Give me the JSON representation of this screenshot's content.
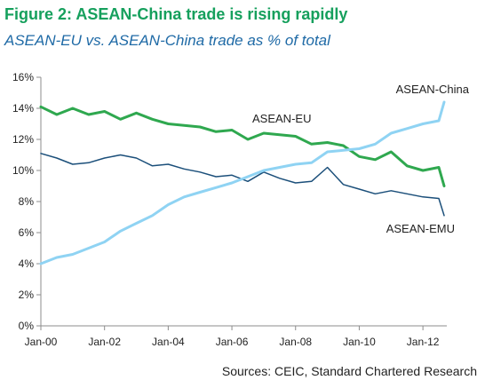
{
  "header": {
    "title": "Figure 2: ASEAN-China trade is rising rapidly",
    "subtitle": "ASEAN-EU vs. ASEAN-China trade as % of total"
  },
  "footer": {
    "source": "Sources: CEIC, Standard Chartered Research"
  },
  "colors": {
    "title": "#16a05d",
    "subtitle": "#1f6aa6",
    "axis": "#8c8c8c",
    "text": "#222222"
  },
  "chart_data": {
    "type": "line",
    "title": "Figure 2: ASEAN-China trade is rising rapidly",
    "subtitle": "ASEAN-EU vs. ASEAN-China trade as % of total",
    "xlabel": "",
    "ylabel": "",
    "x_ticks": [
      "Jan-00",
      "Jan-02",
      "Jan-04",
      "Jan-06",
      "Jan-08",
      "Jan-10",
      "Jan-12"
    ],
    "y_ticks": [
      "0%",
      "2%",
      "4%",
      "6%",
      "8%",
      "10%",
      "12%",
      "14%",
      "16%"
    ],
    "xlim": [
      "2000-01",
      "2012-09"
    ],
    "ylim": [
      0,
      16
    ],
    "grid": false,
    "legend": "inline labels",
    "series": [
      {
        "name": "ASEAN-EU",
        "color": "#2fa84f",
        "width": 3,
        "x": [
          "2000-01",
          "2000-07",
          "2001-01",
          "2001-07",
          "2002-01",
          "2002-07",
          "2003-01",
          "2003-07",
          "2004-01",
          "2004-07",
          "2005-01",
          "2005-07",
          "2006-01",
          "2006-07",
          "2007-01",
          "2007-07",
          "2008-01",
          "2008-07",
          "2009-01",
          "2009-07",
          "2010-01",
          "2010-07",
          "2011-01",
          "2011-07",
          "2012-01",
          "2012-07",
          "2012-09"
        ],
        "values": [
          14.1,
          13.6,
          14.0,
          13.6,
          13.8,
          13.3,
          13.7,
          13.3,
          13.0,
          12.9,
          12.8,
          12.5,
          12.6,
          12.0,
          12.4,
          12.3,
          12.2,
          11.7,
          11.8,
          11.6,
          10.9,
          10.7,
          11.2,
          10.3,
          10.0,
          10.2,
          9.0
        ]
      },
      {
        "name": "ASEAN-China",
        "color": "#8fd3f3",
        "width": 3,
        "x": [
          "2000-01",
          "2000-07",
          "2001-01",
          "2001-07",
          "2002-01",
          "2002-07",
          "2003-01",
          "2003-07",
          "2004-01",
          "2004-07",
          "2005-01",
          "2005-07",
          "2006-01",
          "2006-07",
          "2007-01",
          "2007-07",
          "2008-01",
          "2008-07",
          "2009-01",
          "2009-07",
          "2010-01",
          "2010-07",
          "2011-01",
          "2011-07",
          "2012-01",
          "2012-07",
          "2012-09"
        ],
        "values": [
          4.0,
          4.4,
          4.6,
          5.0,
          5.4,
          6.1,
          6.6,
          7.1,
          7.8,
          8.3,
          8.6,
          8.9,
          9.2,
          9.6,
          10.0,
          10.2,
          10.4,
          10.5,
          11.2,
          11.3,
          11.4,
          11.7,
          12.4,
          12.7,
          13.0,
          13.2,
          14.4
        ]
      },
      {
        "name": "ASEAN-EMU",
        "color": "#1b4f7a",
        "width": 1.5,
        "x": [
          "2000-01",
          "2000-07",
          "2001-01",
          "2001-07",
          "2002-01",
          "2002-07",
          "2003-01",
          "2003-07",
          "2004-01",
          "2004-07",
          "2005-01",
          "2005-07",
          "2006-01",
          "2006-07",
          "2007-01",
          "2007-07",
          "2008-01",
          "2008-07",
          "2009-01",
          "2009-07",
          "2010-01",
          "2010-07",
          "2011-01",
          "2011-07",
          "2012-01",
          "2012-07",
          "2012-09"
        ],
        "values": [
          11.1,
          10.8,
          10.4,
          10.5,
          10.8,
          11.0,
          10.8,
          10.3,
          10.4,
          10.1,
          9.9,
          9.6,
          9.7,
          9.3,
          9.9,
          9.5,
          9.2,
          9.3,
          10.2,
          9.1,
          8.8,
          8.5,
          8.7,
          8.5,
          8.3,
          8.2,
          7.1
        ]
      }
    ],
    "annotations": [
      {
        "text": "ASEAN-China",
        "series": "ASEAN-China"
      },
      {
        "text": "ASEAN-EU",
        "series": "ASEAN-EU"
      },
      {
        "text": "ASEAN-EMU",
        "series": "ASEAN-EMU"
      }
    ]
  }
}
